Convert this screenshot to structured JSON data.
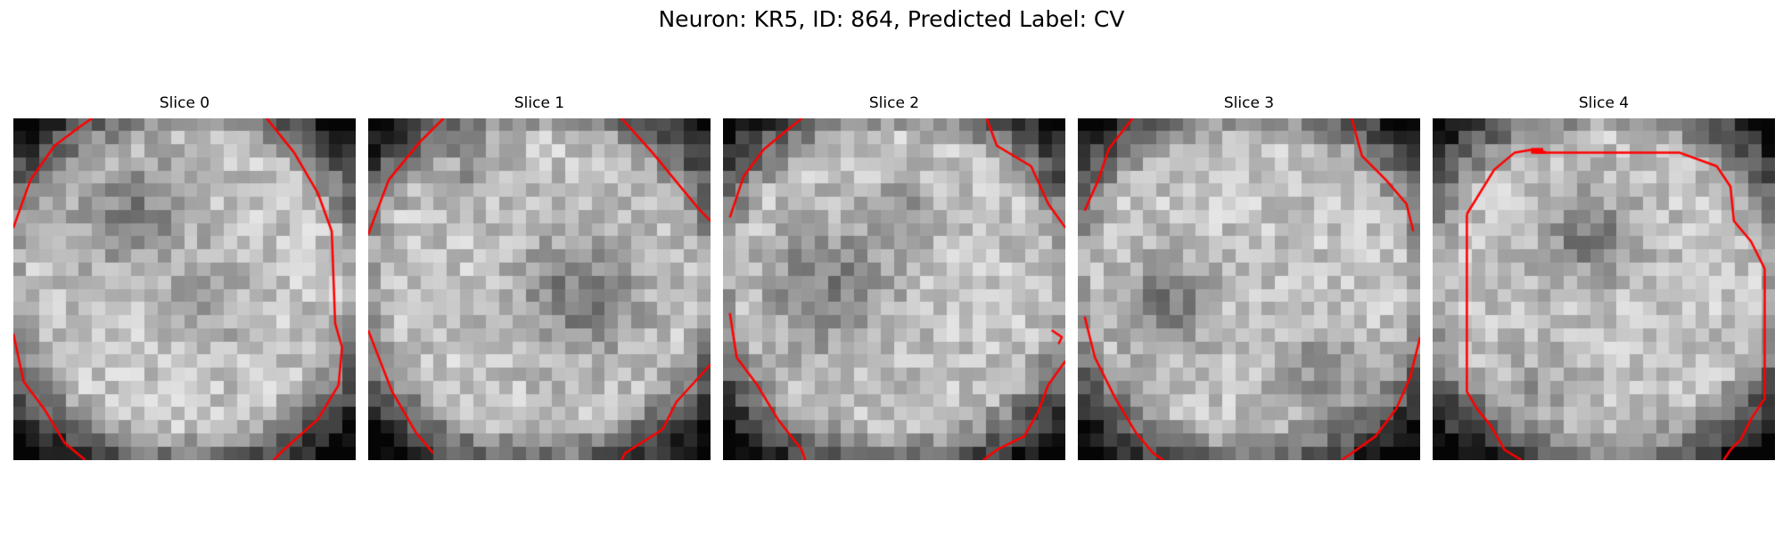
{
  "figure": {
    "title": "Neuron: KR5, ID: 864, Predicted Label: CV"
  },
  "grid": {
    "pixels_per_side": 26,
    "colormap": "gray",
    "contour_color": "#ff0000"
  },
  "panels": [
    {
      "title": "Slice 0",
      "seed": 11,
      "dark_blob": [
        0.35,
        0.28,
        0.12
      ],
      "dark_blob2": [
        0.55,
        0.55,
        0.08
      ],
      "contours": [
        [
          [
            0.0,
            0.32
          ],
          [
            0.05,
            0.18
          ],
          [
            0.12,
            0.08
          ],
          [
            0.2,
            0.02
          ],
          [
            0.23,
            0.0
          ]
        ],
        [
          [
            0.74,
            0.0
          ],
          [
            0.82,
            0.1
          ],
          [
            0.89,
            0.22
          ],
          [
            0.93,
            0.33
          ],
          [
            0.94,
            0.6
          ],
          [
            0.96,
            0.67
          ],
          [
            0.95,
            0.78
          ],
          [
            0.89,
            0.88
          ],
          [
            0.79,
            0.97
          ],
          [
            0.76,
            1.0
          ]
        ],
        [
          [
            0.0,
            0.63
          ],
          [
            0.03,
            0.77
          ],
          [
            0.09,
            0.85
          ],
          [
            0.15,
            0.95
          ],
          [
            0.21,
            1.0
          ]
        ]
      ]
    },
    {
      "title": "Slice 1",
      "seed": 23,
      "dark_blob": [
        0.62,
        0.52,
        0.13
      ],
      "dark_blob2": [
        0.3,
        0.15,
        0.07
      ],
      "contours": [
        [
          [
            0.0,
            0.34
          ],
          [
            0.06,
            0.18
          ],
          [
            0.15,
            0.07
          ],
          [
            0.22,
            0.0
          ]
        ],
        [
          [
            0.74,
            0.0
          ],
          [
            0.83,
            0.1
          ],
          [
            0.97,
            0.27
          ],
          [
            1.0,
            0.3
          ]
        ],
        [
          [
            0.0,
            0.62
          ],
          [
            0.07,
            0.8
          ],
          [
            0.14,
            0.92
          ],
          [
            0.19,
            0.98
          ]
        ],
        [
          [
            1.0,
            0.72
          ],
          [
            0.9,
            0.83
          ],
          [
            0.86,
            0.91
          ],
          [
            0.75,
            0.98
          ],
          [
            0.74,
            1.0
          ]
        ]
      ]
    },
    {
      "title": "Slice 2",
      "seed": 37,
      "dark_blob": [
        0.3,
        0.5,
        0.13
      ],
      "dark_blob2": [
        0.52,
        0.3,
        0.08
      ],
      "contours": [
        [
          [
            0.02,
            0.29
          ],
          [
            0.06,
            0.17
          ],
          [
            0.12,
            0.09
          ],
          [
            0.18,
            0.04
          ],
          [
            0.23,
            0.0
          ]
        ],
        [
          [
            0.77,
            0.0
          ],
          [
            0.8,
            0.08
          ],
          [
            0.9,
            0.14
          ],
          [
            0.95,
            0.25
          ],
          [
            1.0,
            0.32
          ]
        ],
        [
          [
            0.02,
            0.57
          ],
          [
            0.04,
            0.7
          ],
          [
            0.1,
            0.78
          ],
          [
            0.16,
            0.88
          ],
          [
            0.23,
            0.97
          ],
          [
            0.24,
            1.0
          ]
        ],
        [
          [
            1.0,
            0.71
          ],
          [
            0.95,
            0.78
          ],
          [
            0.92,
            0.86
          ],
          [
            0.88,
            0.93
          ],
          [
            0.8,
            0.97
          ],
          [
            0.76,
            1.0
          ]
        ],
        [
          [
            0.96,
            0.62
          ],
          [
            0.99,
            0.64
          ],
          [
            0.98,
            0.66
          ]
        ]
      ]
    },
    {
      "title": "Slice 3",
      "seed": 53,
      "dark_blob": [
        0.25,
        0.55,
        0.1
      ],
      "dark_blob2": [
        0.7,
        0.75,
        0.1
      ],
      "contours": [
        [
          [
            0.02,
            0.27
          ],
          [
            0.06,
            0.18
          ],
          [
            0.09,
            0.09
          ],
          [
            0.16,
            0.0
          ]
        ],
        [
          [
            0.8,
            0.0
          ],
          [
            0.83,
            0.11
          ],
          [
            0.9,
            0.18
          ],
          [
            0.96,
            0.25
          ],
          [
            0.98,
            0.33
          ]
        ],
        [
          [
            0.02,
            0.58
          ],
          [
            0.05,
            0.7
          ],
          [
            0.11,
            0.82
          ],
          [
            0.17,
            0.92
          ],
          [
            0.22,
            0.98
          ],
          [
            0.25,
            1.0
          ]
        ],
        [
          [
            1.0,
            0.64
          ],
          [
            0.97,
            0.76
          ],
          [
            0.93,
            0.85
          ],
          [
            0.87,
            0.93
          ],
          [
            0.8,
            0.98
          ],
          [
            0.77,
            1.0
          ]
        ]
      ]
    },
    {
      "title": "Slice 4",
      "seed": 71,
      "dark_blob": [
        0.45,
        0.35,
        0.1
      ],
      "dark_blob2": [
        0.3,
        0.8,
        0.08
      ],
      "contours": [
        [
          [
            0.1,
            0.28
          ],
          [
            0.18,
            0.15
          ],
          [
            0.24,
            0.1
          ],
          [
            0.3,
            0.09
          ],
          [
            0.29,
            0.09
          ],
          [
            0.31,
            0.09
          ],
          [
            0.32,
            0.09
          ],
          [
            0.31,
            0.1
          ],
          [
            0.3,
            0.1
          ],
          [
            0.31,
            0.09
          ],
          [
            0.31,
            0.09
          ],
          [
            0.33,
            0.1
          ],
          [
            0.3,
            0.1
          ],
          [
            0.31,
            0.1
          ],
          [
            0.32,
            0.09
          ],
          [
            0.31,
            0.09
          ],
          [
            0.31,
            0.1
          ],
          [
            0.3,
            0.1
          ],
          [
            0.31,
            0.1
          ],
          [
            0.31,
            0.1
          ],
          [
            0.31,
            0.1
          ],
          [
            0.31,
            0.1
          ],
          [
            0.3,
            0.1
          ],
          [
            0.3,
            0.1
          ],
          [
            0.31,
            0.1
          ],
          [
            0.31,
            0.09
          ],
          [
            0.32,
            0.1
          ],
          [
            0.32,
            0.1
          ],
          [
            0.31,
            0.1
          ],
          [
            0.3,
            0.1
          ],
          [
            0.3,
            0.1
          ],
          [
            0.3,
            0.1
          ],
          [
            0.3,
            0.1
          ],
          [
            0.31,
            0.09
          ],
          [
            0.29,
            0.1
          ],
          [
            0.3,
            0.1
          ],
          [
            0.31,
            0.1
          ],
          [
            0.31,
            0.1
          ],
          [
            0.3,
            0.1
          ],
          [
            0.3,
            0.1
          ],
          [
            0.31,
            0.1
          ],
          [
            0.3,
            0.1
          ],
          [
            0.31,
            0.1
          ],
          [
            0.3,
            0.1
          ],
          [
            0.32,
            0.09
          ],
          [
            0.3,
            0.1
          ],
          [
            0.31,
            0.09
          ],
          [
            0.3,
            0.1
          ],
          [
            0.3,
            0.1
          ],
          [
            0.3,
            0.1
          ],
          [
            0.3,
            0.1
          ],
          [
            0.31,
            0.1
          ],
          [
            0.31,
            0.1
          ],
          [
            0.31,
            0.1
          ],
          [
            0.3,
            0.1
          ],
          [
            0.3,
            0.1
          ]
        ],
        [
          [
            0.3,
            0.1
          ],
          [
            0.72,
            0.1
          ],
          [
            0.83,
            0.14
          ],
          [
            0.87,
            0.2
          ],
          [
            0.88,
            0.3
          ],
          [
            0.93,
            0.36
          ],
          [
            0.97,
            0.44
          ],
          [
            0.97,
            0.82
          ],
          [
            0.93,
            0.88
          ],
          [
            0.9,
            0.94
          ],
          [
            0.87,
            0.97
          ],
          [
            0.85,
            1.0
          ]
        ],
        [
          [
            0.1,
            0.28
          ],
          [
            0.1,
            0.8
          ],
          [
            0.13,
            0.85
          ],
          [
            0.17,
            0.9
          ],
          [
            0.21,
            0.97
          ],
          [
            0.26,
            1.0
          ]
        ]
      ]
    }
  ]
}
